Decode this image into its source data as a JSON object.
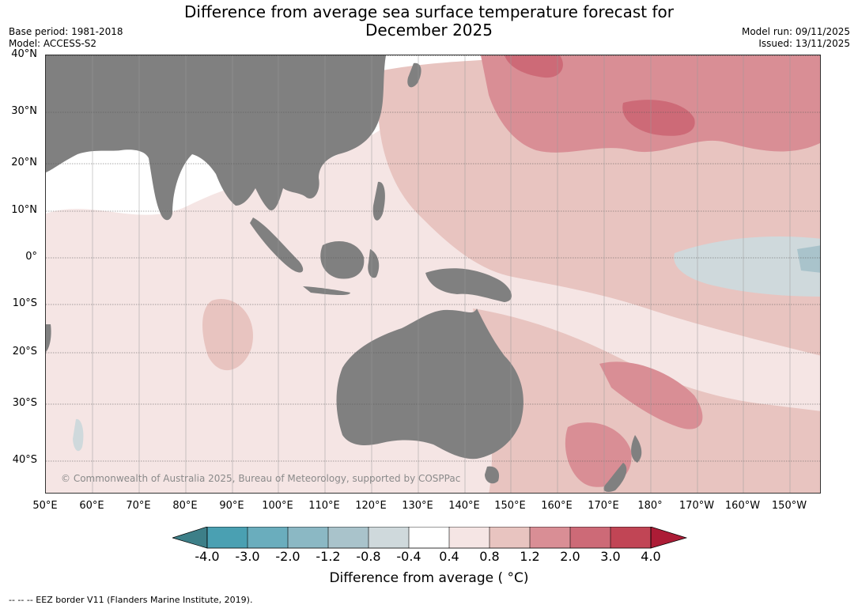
{
  "header": {
    "title_line1": "Difference from average sea surface temperature forecast for",
    "title_line2": "December 2025",
    "base_period": "Base period: 1981-2018",
    "model": "Model: ACCESS-S2",
    "model_run": "Model run: 09/11/2025",
    "issued": "Issued: 13/11/2025"
  },
  "map": {
    "lat_labels": [
      "40°N",
      "30°N",
      "20°N",
      "10°N",
      "0°",
      "10°S",
      "20°S",
      "30°S",
      "40°S"
    ],
    "lon_labels": [
      "50°E",
      "60°E",
      "70°E",
      "80°E",
      "90°E",
      "100°E",
      "110°E",
      "120°E",
      "130°E",
      "140°E",
      "150°E",
      "160°E",
      "170°E",
      "180°",
      "170°W",
      "160°W",
      "150°W"
    ],
    "copyright": "© Commonwealth of Australia 2025, Bureau of Meteorology, supported by COSPPac",
    "land_color": "#808080"
  },
  "colorbar": {
    "ticks": [
      "-4.0",
      "-3.0",
      "-2.0",
      "-1.2",
      "-0.8",
      "-0.4",
      "0.4",
      "0.8",
      "1.2",
      "2.0",
      "3.0",
      "4.0"
    ],
    "colors": [
      "#3d7f88",
      "#4aa0b2",
      "#6aadbd",
      "#8bb8c4",
      "#a9c3cb",
      "#cfd9dc",
      "#ffffff",
      "#f5e5e4",
      "#e8c4c0",
      "#d98e95",
      "#cd6a77",
      "#c14555",
      "#ac1c36"
    ],
    "title": "Difference from average ( °C)"
  },
  "footer": {
    "eez_note": "--  --  -- EEZ border V11 (Flanders Marine Institute, 2019)."
  }
}
